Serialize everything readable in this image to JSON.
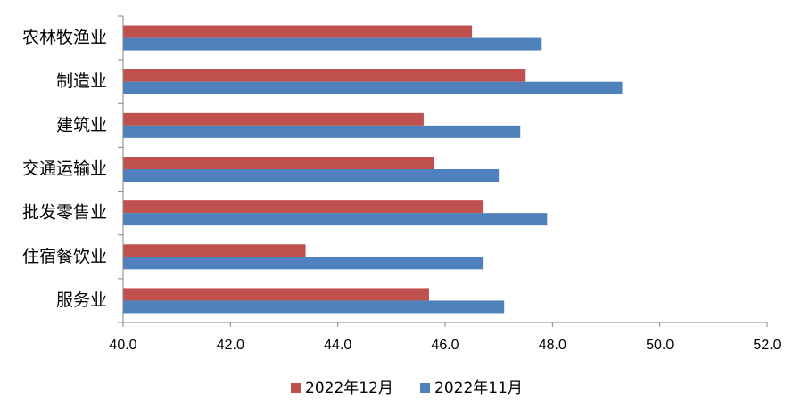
{
  "chart_data": {
    "type": "bar",
    "orientation": "horizontal",
    "categories": [
      "农林牧渔业",
      "制造业",
      "建筑业",
      "交通运输业",
      "批发零售业",
      "住宿餐饮业",
      "服务业"
    ],
    "series": [
      {
        "name": "2022年12月",
        "color": "#C0504D",
        "values": [
          46.5,
          47.5,
          45.6,
          45.8,
          46.7,
          43.4,
          45.7
        ]
      },
      {
        "name": "2022年11月",
        "color": "#4F81BD",
        "values": [
          47.8,
          49.3,
          47.4,
          47.0,
          47.9,
          46.7,
          47.1
        ]
      }
    ],
    "xlim": [
      40.0,
      52.0
    ],
    "xticks": [
      "40.0",
      "42.0",
      "44.0",
      "46.0",
      "48.0",
      "50.0",
      "52.0"
    ],
    "grid": false,
    "legend_position": "bottom",
    "title": "",
    "xlabel": "",
    "ylabel": ""
  }
}
